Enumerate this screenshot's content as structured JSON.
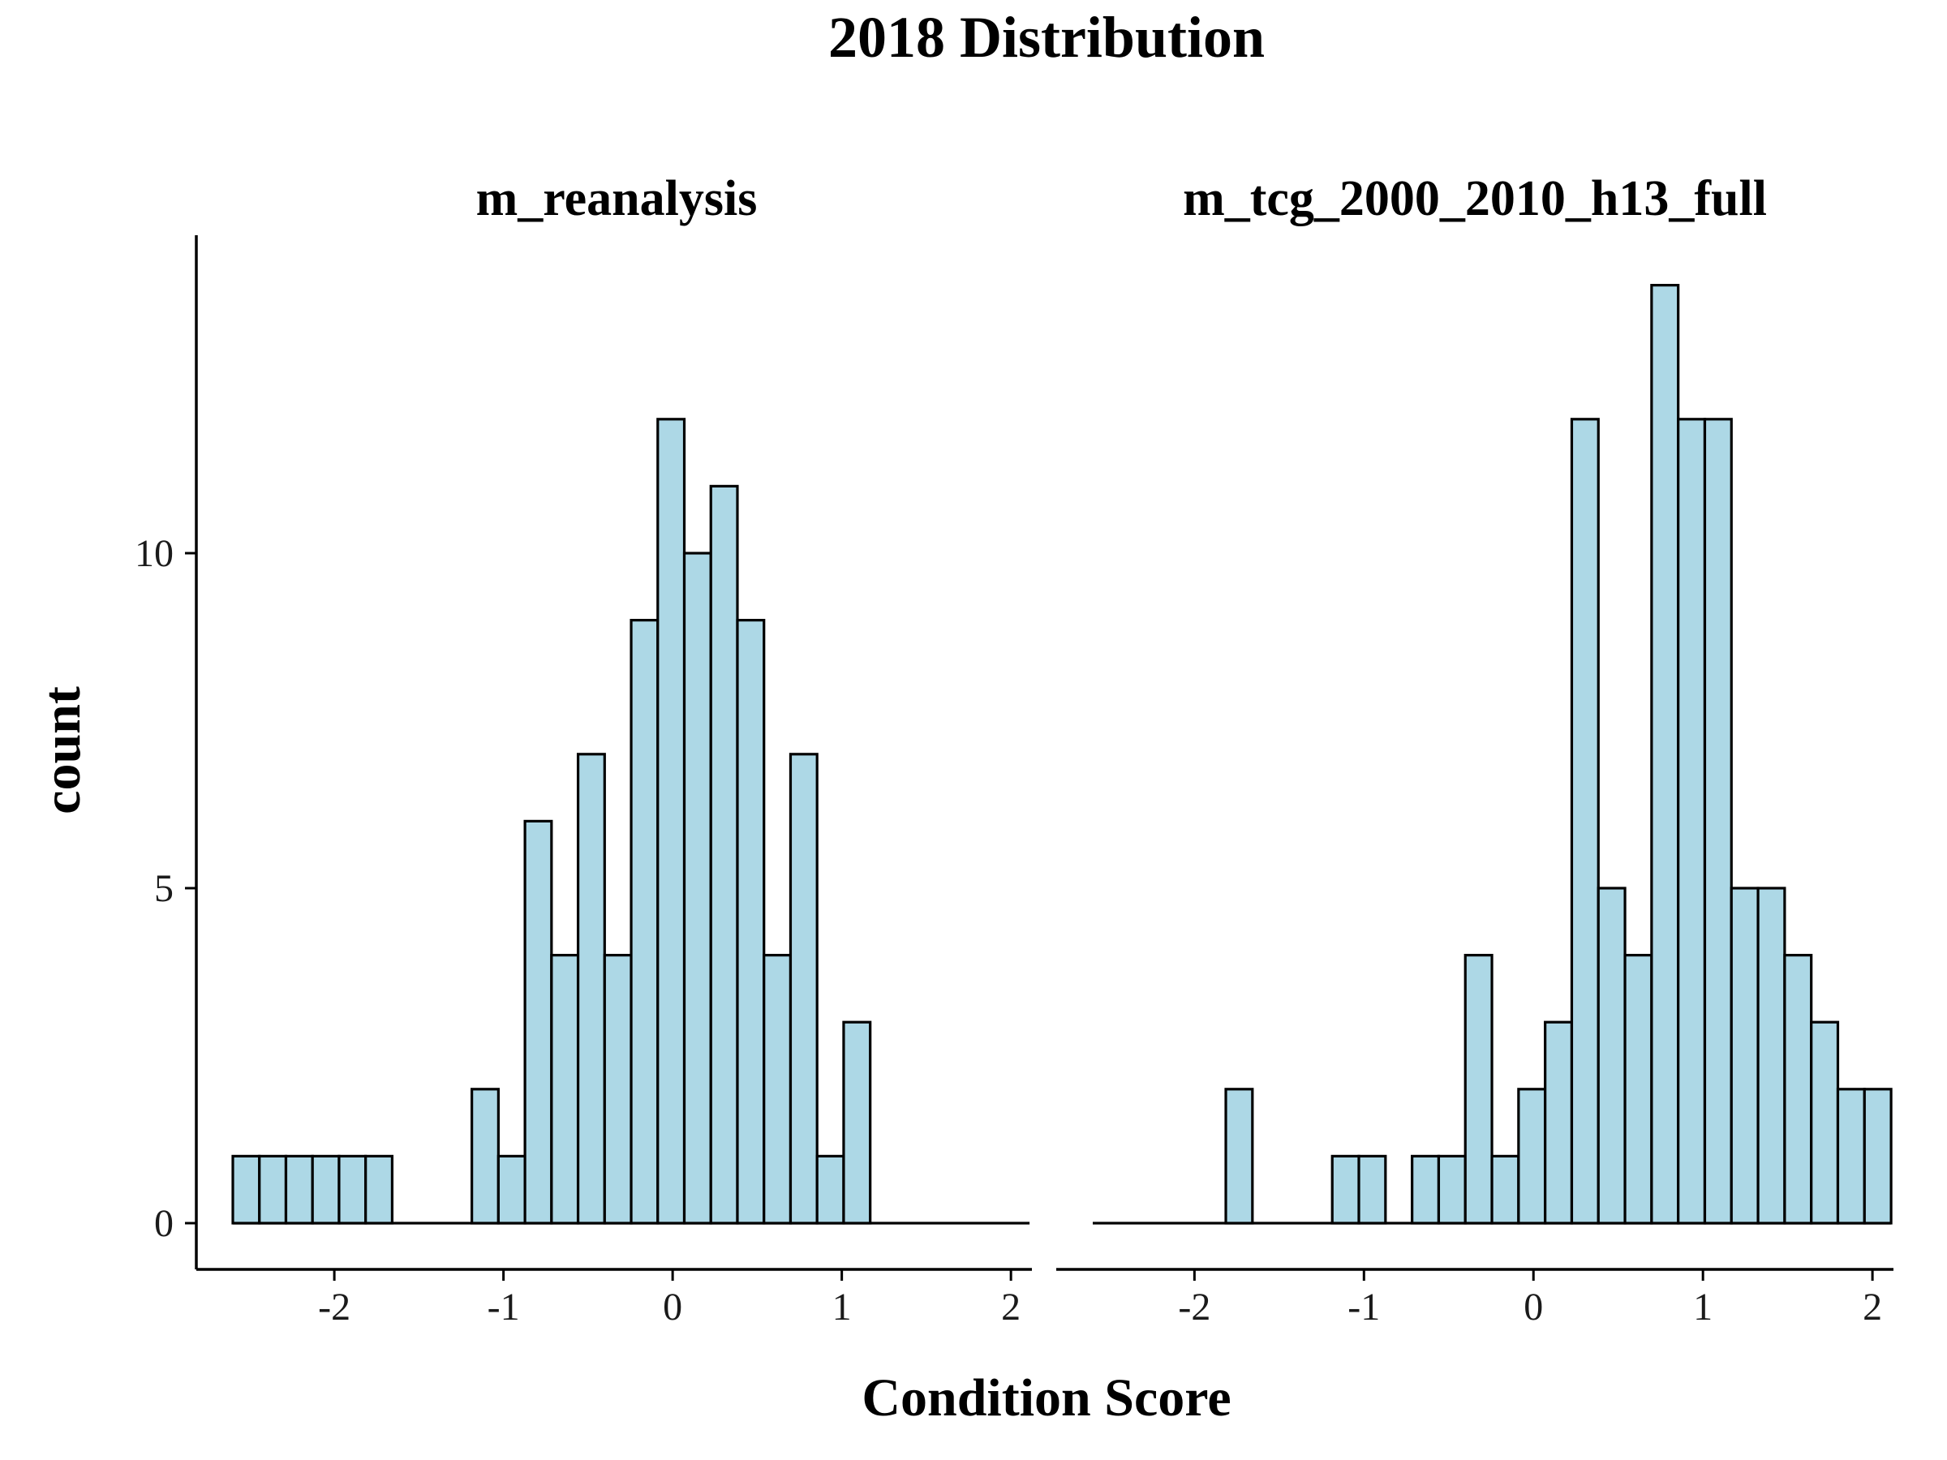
{
  "chart_data": {
    "type": "bar",
    "title": "2018 Distribution",
    "xlabel": "Condition Score",
    "ylabel": "count",
    "xlim": [
      -2.6,
      2.1
    ],
    "ylim": [
      0,
      14
    ],
    "x_ticks": [
      "-2",
      "-1",
      "0",
      "1",
      "2"
    ],
    "y_ticks": [
      "0",
      "5",
      "10"
    ],
    "bin_start": -2.6,
    "bin_width": 0.157,
    "grid": false,
    "facets": [
      {
        "name": "m_reanalysis",
        "counts": [
          1,
          1,
          1,
          1,
          1,
          1,
          0,
          0,
          0,
          2,
          1,
          6,
          4,
          7,
          4,
          9,
          12,
          10,
          11,
          9,
          4,
          7,
          1,
          3,
          0,
          0,
          0,
          0,
          0,
          0
        ]
      },
      {
        "name": "m_tcg_2000_2010_h13_full",
        "counts": [
          0,
          0,
          0,
          0,
          0,
          2,
          0,
          0,
          0,
          1,
          1,
          0,
          1,
          1,
          4,
          1,
          2,
          3,
          12,
          5,
          4,
          14,
          12,
          12,
          5,
          5,
          4,
          3,
          2,
          2
        ]
      }
    ]
  }
}
